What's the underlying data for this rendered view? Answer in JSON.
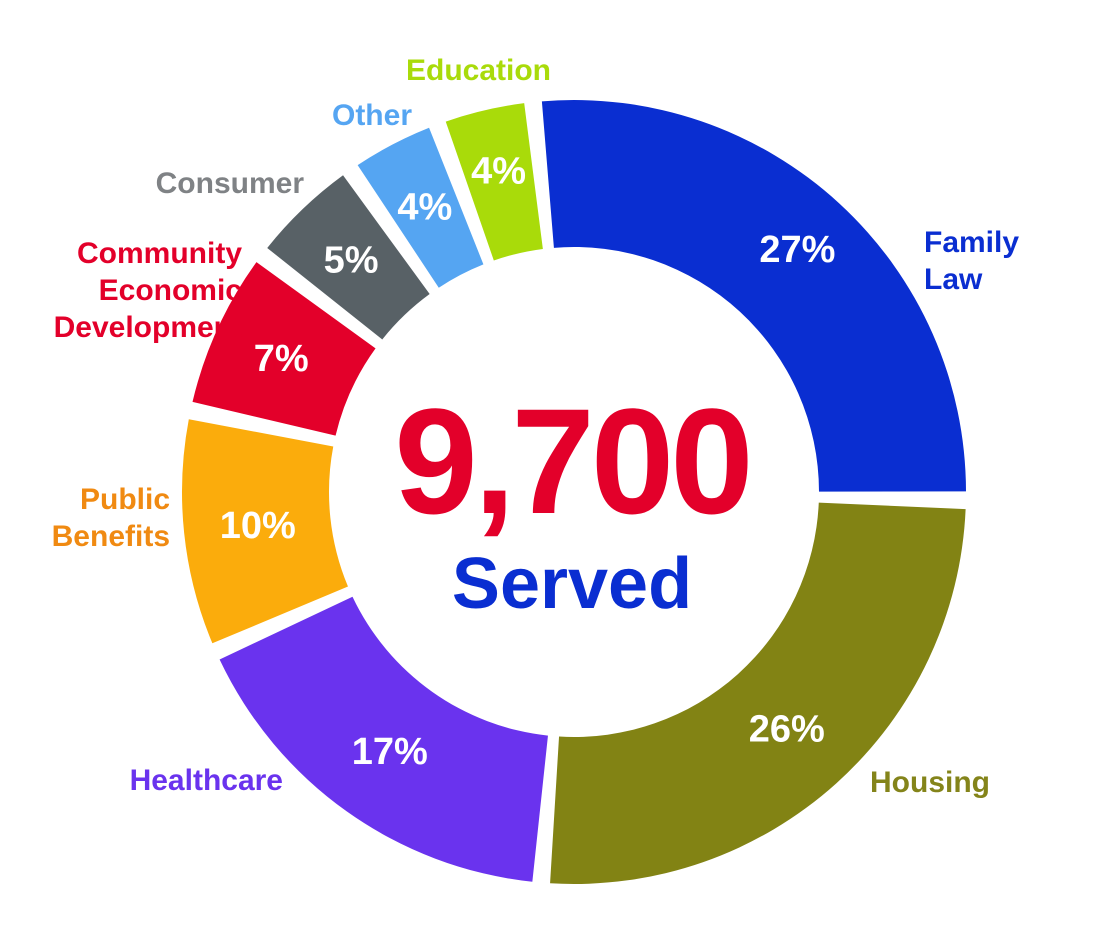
{
  "chart_data": {
    "type": "pie",
    "variant": "donut",
    "total_value": "9,700",
    "total_label": "Served",
    "slices": [
      {
        "category_lines": [
          "Family",
          "Law"
        ],
        "value": 27,
        "label": "27%",
        "color": "#0a2ed1"
      },
      {
        "category_lines": [
          "Housing"
        ],
        "value": 26,
        "label": "26%",
        "color": "#828314"
      },
      {
        "category_lines": [
          "Healthcare"
        ],
        "value": 17,
        "label": "17%",
        "color": "#6a33ee"
      },
      {
        "category_lines": [
          "Public",
          "Benefits"
        ],
        "value": 10,
        "label": "10%",
        "color": "#fbac0c"
      },
      {
        "category_lines": [
          "Community",
          "Economic",
          "Development"
        ],
        "value": 7,
        "label": "7%",
        "color": "#e3002a"
      },
      {
        "category_lines": [
          "Consumer"
        ],
        "value": 5,
        "label": "5%",
        "color": "#586166"
      },
      {
        "category_lines": [
          "Other"
        ],
        "value": 4,
        "label": "4%",
        "color": "#55a5f2"
      },
      {
        "category_lines": [
          "Education"
        ],
        "value": 4,
        "label": "4%",
        "color": "#a9db0a"
      }
    ],
    "label_colors": [
      "#0a2ed1",
      "#84841a",
      "#6a33ee",
      "#f08a12",
      "#e3002a",
      "#7f8285",
      "#55a5f2",
      "#a9db0a"
    ],
    "center_total_color": "#e3002a",
    "center_sub_color": "#0a2ed1"
  }
}
